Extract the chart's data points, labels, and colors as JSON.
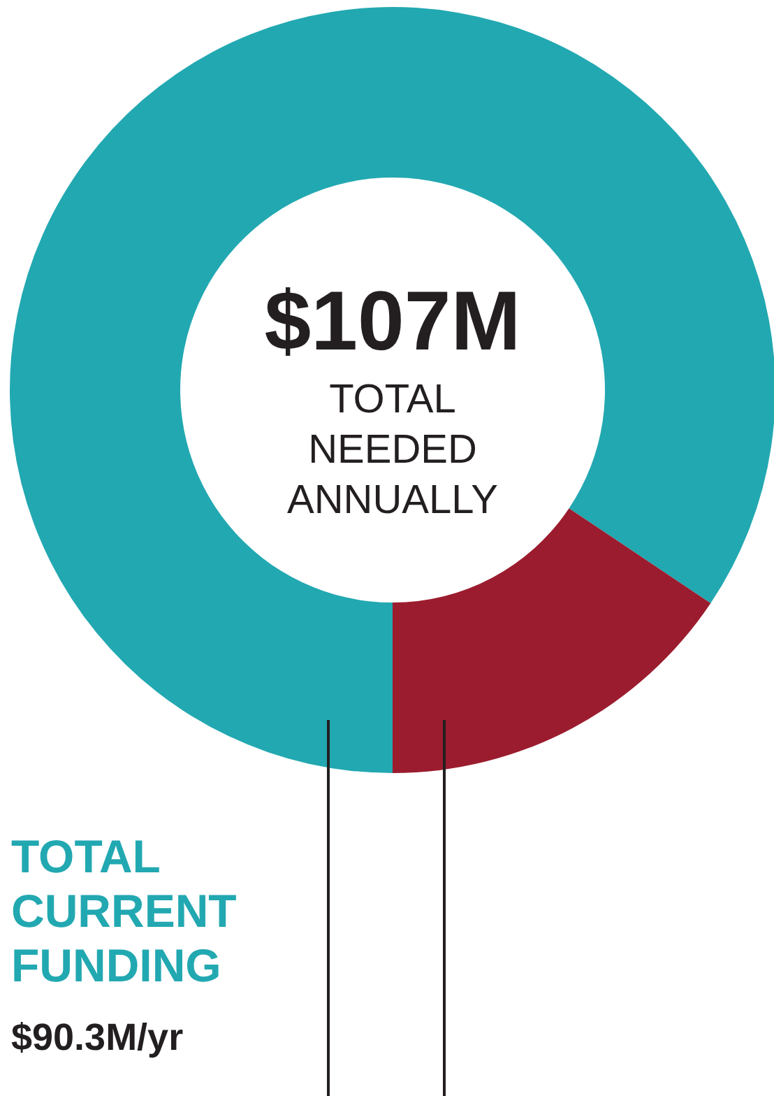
{
  "chart_data": {
    "type": "donut",
    "title": "$107M",
    "subtitle": "TOTAL NEEDED ANNUALLY",
    "categories": [
      "TOTAL CURRENT FUNDING",
      null
    ],
    "values": [
      90.3,
      16.7
    ],
    "colors": [
      "#22a8b1",
      "#9b1c2e"
    ],
    "value_labels": [
      "$90.3M/yr",
      null
    ]
  }
}
